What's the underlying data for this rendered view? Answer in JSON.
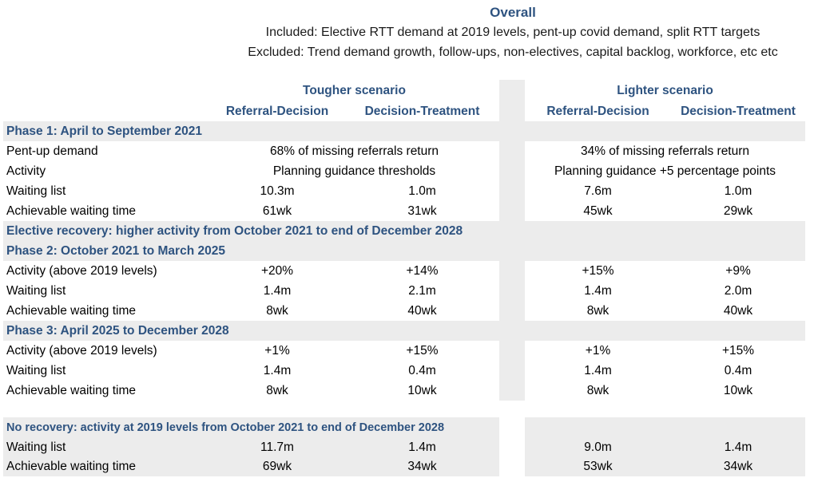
{
  "colors": {
    "accent": "#2E5380",
    "section_bg": "#ECECEC",
    "page_bg": "#FFFFFF"
  },
  "title": {
    "heading": "Overall",
    "included": "Included: Elective RTT demand at 2019 levels, pent-up covid demand, split RTT targets",
    "excluded": "Excluded: Trend demand growth, follow-ups, non-electives, capital backlog, workforce, etc etc"
  },
  "columns": {
    "tougher": {
      "label": "Tougher scenario",
      "sub": [
        "Referral-Decision",
        "Decision-Treatment"
      ]
    },
    "lighter": {
      "label": "Lighter scenario",
      "sub": [
        "Referral-Decision",
        "Decision-Treatment"
      ]
    }
  },
  "sections": [
    {
      "header": "Phase 1: April to September 2021",
      "rows": [
        {
          "label": "Pent-up demand",
          "tougher": "68% of missing referrals return",
          "lighter": "34% of missing referrals return"
        },
        {
          "label": "Activity",
          "tougher": "Planning guidance thresholds",
          "lighter": "Planning guidance +5 percentage points"
        },
        {
          "label": "Waiting list",
          "values": [
            "10.3m",
            "1.0m",
            "7.6m",
            "1.0m"
          ]
        },
        {
          "label": "Achievable waiting time",
          "values": [
            "61wk",
            "31wk",
            "45wk",
            "29wk"
          ]
        }
      ]
    },
    {
      "header": "Elective recovery: higher activity from October 2021 to end of December 2028"
    },
    {
      "header": "Phase 2: October 2021 to March 2025",
      "rows": [
        {
          "label": "Activity (above 2019 levels)",
          "values": [
            "+20%",
            "+14%",
            "+15%",
            "+9%"
          ]
        },
        {
          "label": "Waiting list",
          "values": [
            "1.4m",
            "2.1m",
            "1.4m",
            "2.0m"
          ]
        },
        {
          "label": "Achievable waiting time",
          "values": [
            "8wk",
            "40wk",
            "8wk",
            "40wk"
          ]
        }
      ]
    },
    {
      "header": "Phase 3: April 2025 to December 2028",
      "rows": [
        {
          "label": "Activity (above 2019 levels)",
          "values": [
            "+1%",
            "+15%",
            "+1%",
            "+15%"
          ]
        },
        {
          "label": "Waiting list",
          "values": [
            "1.4m",
            "0.4m",
            "1.4m",
            "0.4m"
          ]
        },
        {
          "label": "Achievable waiting time",
          "values": [
            "8wk",
            "10wk",
            "8wk",
            "10wk"
          ]
        }
      ]
    },
    {
      "header": "No recovery: activity at 2019 levels from October 2021 to end of December 2028",
      "rows": [
        {
          "label": "Waiting list",
          "values": [
            "11.7m",
            "1.4m",
            "9.0m",
            "1.4m"
          ]
        },
        {
          "label": "Achievable waiting time",
          "values": [
            "69wk",
            "34wk",
            "53wk",
            "34wk"
          ]
        }
      ]
    }
  ]
}
